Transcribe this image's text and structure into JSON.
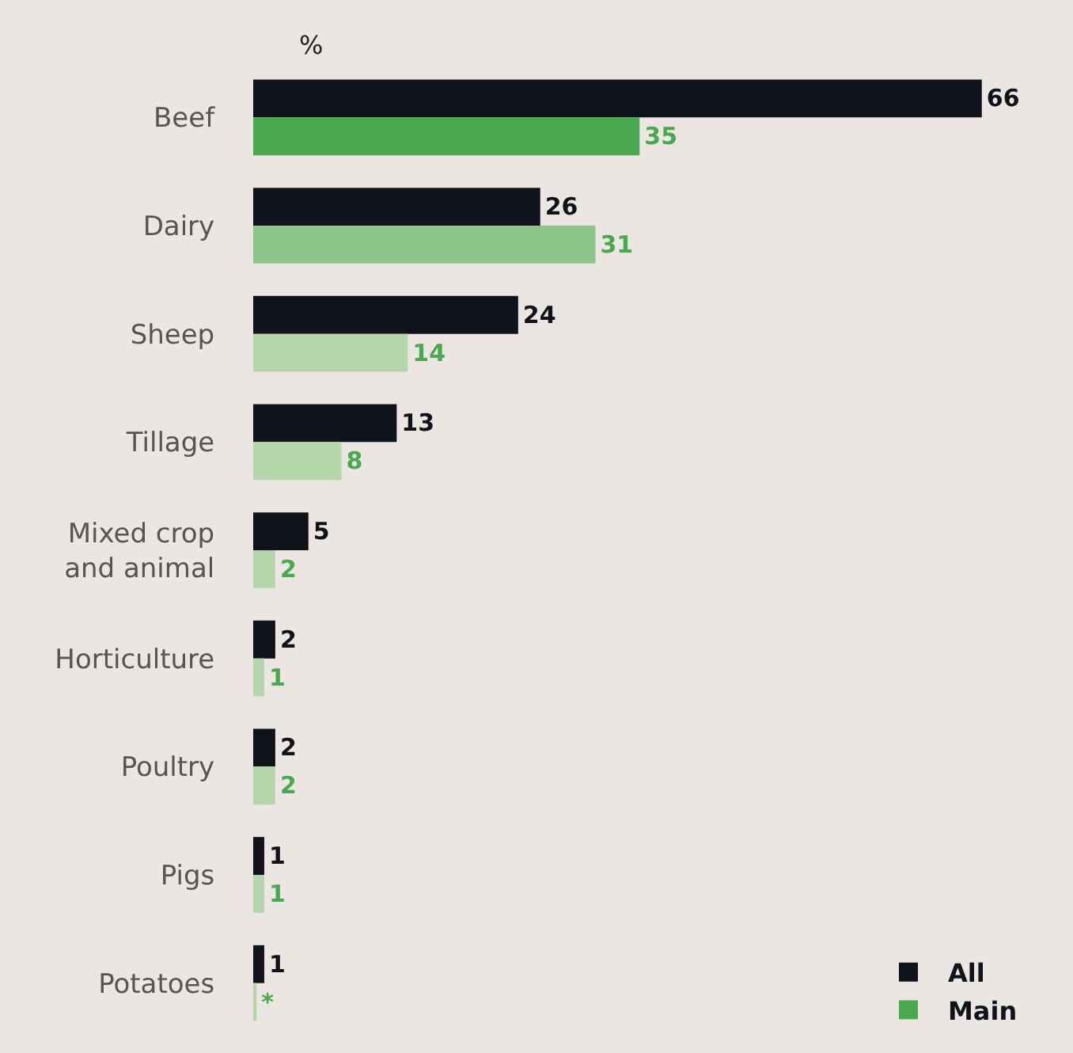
{
  "chart_data": {
    "type": "bar",
    "orientation": "horizontal",
    "xlabel": "%",
    "categories": [
      "Beef",
      "Dairy",
      "Sheep",
      "Tillage",
      "Mixed crop\nand animal",
      "Horticulture",
      "Poultry",
      "Pigs",
      "Potatoes"
    ],
    "series": [
      {
        "name": "All",
        "color": "#10121c",
        "values": [
          66,
          26,
          24,
          13,
          5,
          2,
          2,
          1,
          1
        ],
        "value_labels": [
          "66",
          "26",
          "24",
          "13",
          "5",
          "2",
          "2",
          "1",
          "1"
        ]
      },
      {
        "name": "Main",
        "color": "#4aa84f",
        "colors": [
          "#4aa84f",
          "#8cc48a",
          "#b5d6ab",
          "#b5d6ab",
          "#b5d6ab",
          "#b5d6ab",
          "#b5d6ab",
          "#b5d6ab",
          "#b5d6ab"
        ],
        "values": [
          35,
          31,
          14,
          8,
          2,
          1,
          2,
          1,
          0.3
        ],
        "value_labels": [
          "35",
          "31",
          "14",
          "8",
          "2",
          "1",
          "2",
          "1",
          "*"
        ]
      }
    ],
    "legend": "bottom right",
    "grid": false
  }
}
